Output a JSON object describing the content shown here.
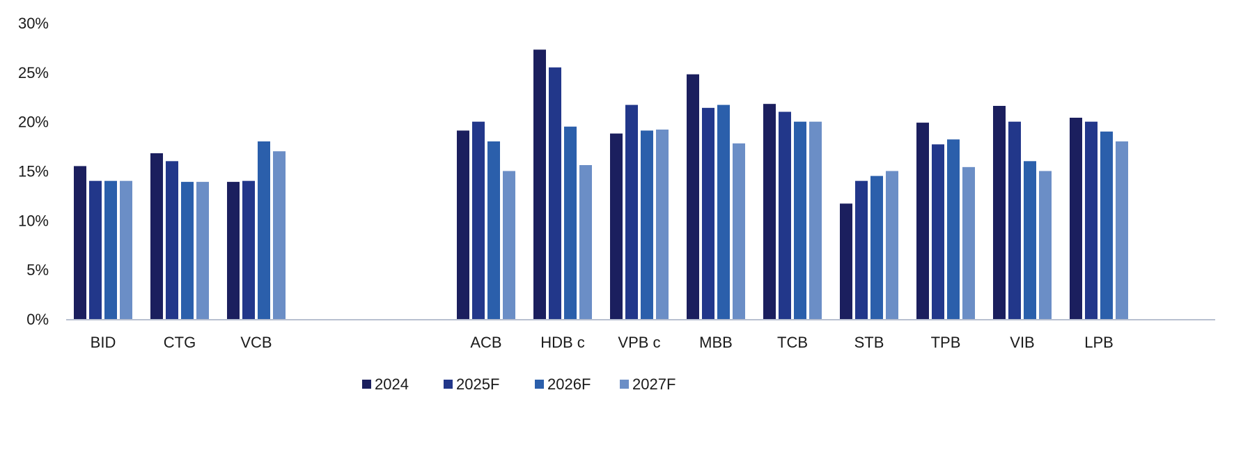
{
  "chart_data": {
    "type": "bar",
    "title": "",
    "xlabel": "",
    "ylabel": "",
    "ylim": [
      0,
      30
    ],
    "y_ticks": [
      "0%",
      "5%",
      "10%",
      "15%",
      "20%",
      "25%",
      "30%"
    ],
    "y_tick_values": [
      0,
      5,
      10,
      15,
      20,
      25,
      30
    ],
    "y_unit": "%",
    "grid": false,
    "legend_position": "bottom-center",
    "groups": [
      [
        "BID",
        "CTG",
        "VCB"
      ],
      [
        "ACB",
        "HDB c",
        "VPB c",
        "MBB",
        "TCB",
        "STB",
        "TPB",
        "VIB",
        "LPB"
      ]
    ],
    "categories": [
      "BID",
      "CTG",
      "VCB",
      "ACB",
      "HDB c",
      "VPB c",
      "MBB",
      "TCB",
      "STB",
      "TPB",
      "VIB",
      "LPB"
    ],
    "series": [
      {
        "name": "2024",
        "color": "#1b1f5e",
        "values": [
          15.5,
          16.8,
          13.9,
          19.1,
          27.3,
          18.8,
          24.8,
          21.8,
          11.7,
          19.9,
          21.6,
          20.4
        ]
      },
      {
        "name": "2025F",
        "color": "#22378a",
        "values": [
          14.0,
          16.0,
          14.0,
          20.0,
          25.5,
          21.7,
          21.4,
          21.0,
          14.0,
          17.7,
          20.0,
          20.0
        ]
      },
      {
        "name": "2026F",
        "color": "#2b5fab",
        "values": [
          14.0,
          13.9,
          18.0,
          18.0,
          19.5,
          19.1,
          21.7,
          20.0,
          14.5,
          18.2,
          16.0,
          19.0
        ]
      },
      {
        "name": "2027F",
        "color": "#6b8ec6",
        "values": [
          14.0,
          13.9,
          17.0,
          15.0,
          15.6,
          19.2,
          17.8,
          20.0,
          15.0,
          15.4,
          15.0,
          18.0
        ]
      }
    ]
  }
}
